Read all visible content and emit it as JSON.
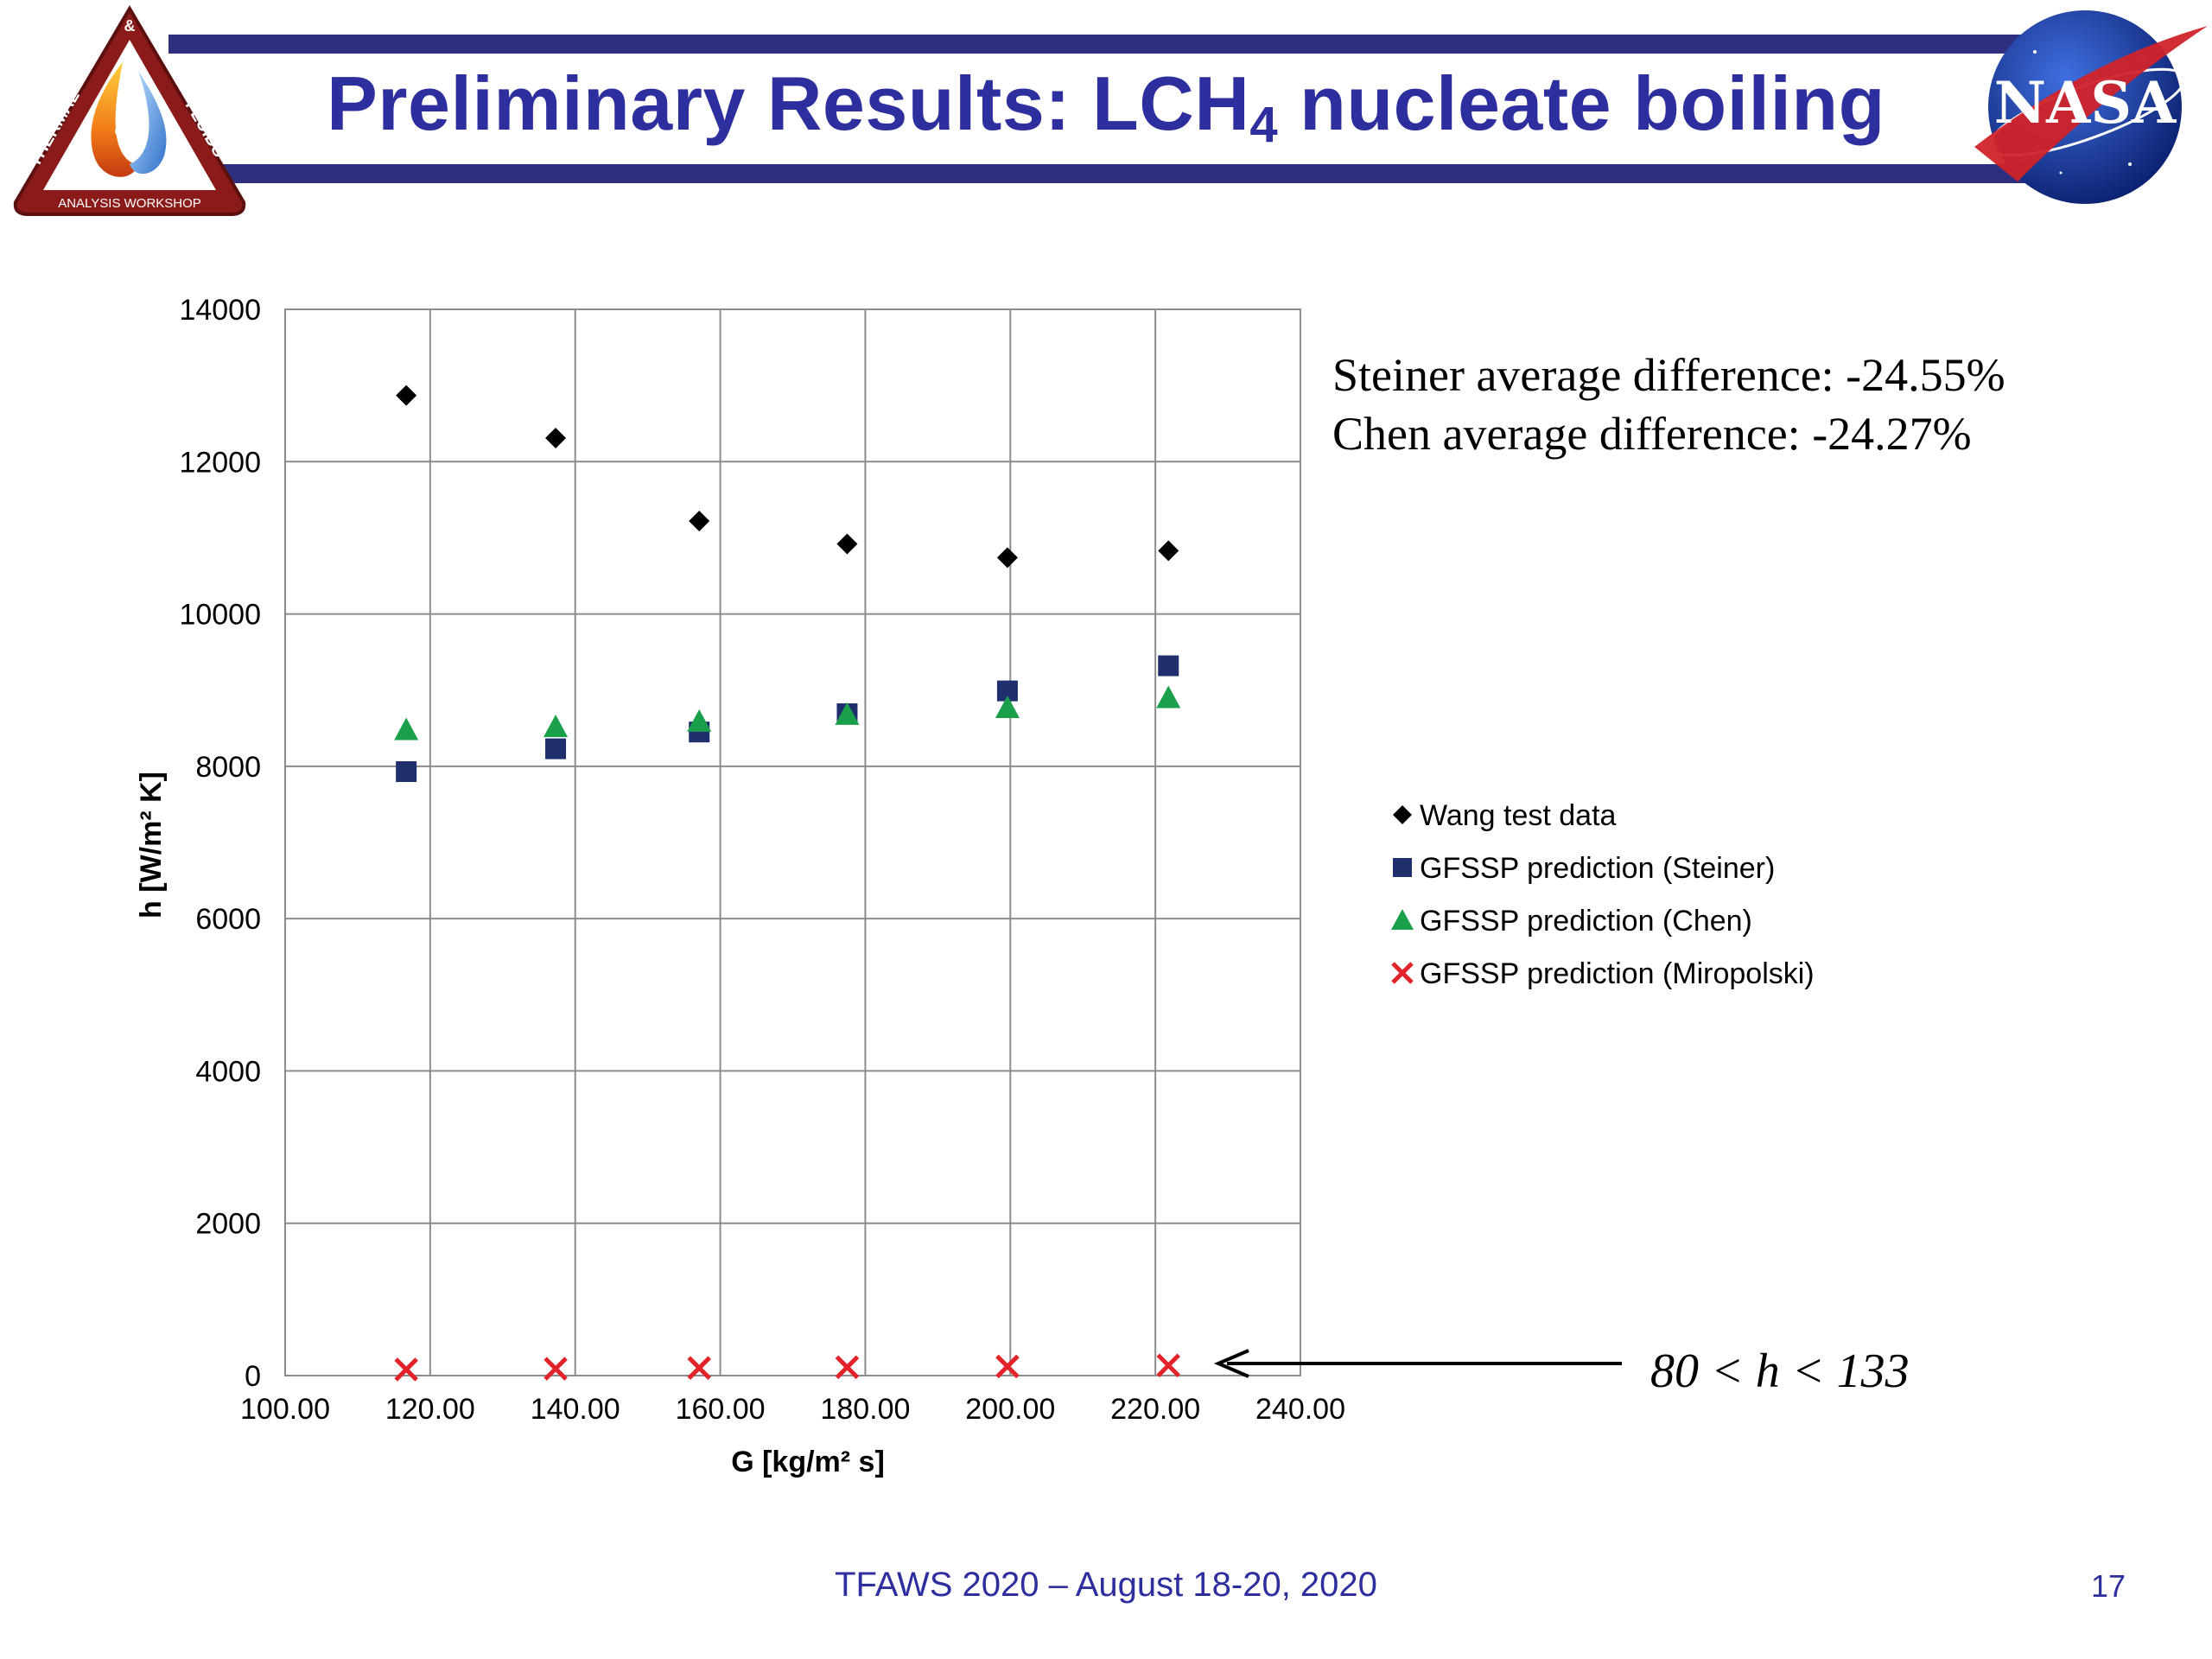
{
  "slide": {
    "title_main": "Preliminary Results:  LCH",
    "title_sub": "4",
    "title_rest": " nucleate boiling",
    "footer": "TFAWS 2020 – August 18-20, 2020",
    "page_number": "17"
  },
  "logos": {
    "tfaws": {
      "top_text": "&",
      "left_text": "THERMAL",
      "right_text": "FLUIDS",
      "bottom_text": "ANALYSIS WORKSHOP",
      "frame_color": "#8b1a1a"
    },
    "nasa": {
      "text": "NASA",
      "globe_color": "#1a3a9f",
      "swoosh_color": "#d0232a"
    }
  },
  "annotations": {
    "steiner_line": "Steiner average difference:  -24.55%",
    "chen_line": "Chen average difference:  -24.27%",
    "miropolski_range": "80 < h < 133"
  },
  "chart_data": {
    "type": "scatter",
    "xlabel": "G [kg/m² s]",
    "ylabel": "h [W/m² K]",
    "xlim": [
      100,
      240
    ],
    "ylim": [
      0,
      14000
    ],
    "x_ticks": [
      "100.00",
      "120.00",
      "140.00",
      "160.00",
      "180.00",
      "200.00",
      "220.00",
      "240.00"
    ],
    "y_ticks": [
      "0",
      "2000",
      "4000",
      "6000",
      "8000",
      "10000",
      "12000",
      "14000"
    ],
    "grid": true,
    "legend_position": "right",
    "series": [
      {
        "name": "Wang test data",
        "marker": "diamond",
        "color": "#000000",
        "x": [
          116.7,
          137.3,
          157.1,
          177.5,
          199.6,
          221.8
        ],
        "y": [
          12870,
          12310,
          11220,
          10920,
          10740,
          10830
        ]
      },
      {
        "name": "GFSSP prediction (Steiner)",
        "marker": "square",
        "color": "#1f2f6e",
        "x": [
          116.7,
          137.3,
          157.1,
          177.5,
          199.6,
          221.8
        ],
        "y": [
          7930,
          8230,
          8450,
          8690,
          8990,
          9320
        ]
      },
      {
        "name": "GFSSP prediction (Chen)",
        "marker": "triangle",
        "color": "#1aa04a",
        "x": [
          116.7,
          137.3,
          157.1,
          177.5,
          199.6,
          221.8
        ],
        "y": [
          8480,
          8520,
          8590,
          8680,
          8770,
          8900
        ]
      },
      {
        "name": "GFSSP prediction (Miropolski)",
        "marker": "x",
        "color": "#e2232a",
        "x": [
          116.7,
          137.3,
          157.1,
          177.5,
          199.6,
          221.8
        ],
        "y": [
          80,
          90,
          100,
          110,
          120,
          133
        ]
      }
    ]
  }
}
